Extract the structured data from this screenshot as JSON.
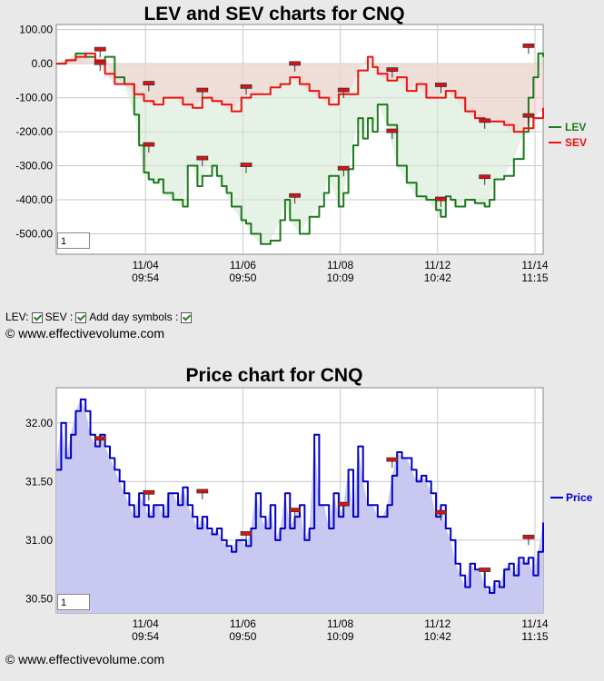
{
  "chart_data": [
    {
      "type": "area",
      "title": "LEV and SEV charts for CNQ",
      "ylim": [
        -560,
        115
      ],
      "yticks": [
        100,
        0,
        -100,
        -200,
        -300,
        -400,
        -500
      ],
      "ytick_labels": [
        "100.00",
        "0.00",
        "-100.00",
        "-200.00",
        "-300.00",
        "-400.00",
        "-500.00"
      ],
      "xticks": [
        {
          "date": "11/04",
          "time": "09:54",
          "at": 20
        },
        {
          "date": "11/06",
          "time": "09:50",
          "at": 40
        },
        {
          "date": "11/08",
          "time": "10:09",
          "at": 60
        },
        {
          "date": "11/12",
          "time": "10:42",
          "at": 80
        },
        {
          "date": "11/14",
          "time": "11:15",
          "at": 100
        }
      ],
      "zoom_value": "1",
      "series": [
        {
          "name": "LEV",
          "color": "#1c7a1c",
          "fill": "#d2e8d2",
          "x": [
            0,
            2,
            4,
            6,
            8,
            10,
            12,
            14,
            16,
            17,
            18,
            19,
            20,
            21,
            22,
            24,
            26,
            27,
            28,
            29,
            30,
            32,
            33,
            34,
            35,
            36,
            38,
            39,
            40,
            42,
            44,
            46,
            47,
            48,
            50,
            52,
            54,
            55,
            56,
            58,
            59,
            60,
            61,
            62,
            63,
            64,
            65,
            66,
            68,
            70,
            72,
            74,
            76,
            78,
            79,
            80,
            81,
            82,
            84,
            86,
            88,
            89,
            90,
            92,
            94,
            96,
            97,
            98,
            99,
            100
          ],
          "values": [
            0,
            10,
            30,
            20,
            0,
            20,
            -40,
            -60,
            -150,
            -240,
            -320,
            -340,
            -350,
            -340,
            -380,
            -400,
            -420,
            -300,
            -300,
            -360,
            -330,
            -300,
            -330,
            -360,
            -380,
            -420,
            -460,
            -470,
            -500,
            -530,
            -520,
            -460,
            -400,
            -460,
            -500,
            -450,
            -420,
            -380,
            -330,
            -420,
            -380,
            -310,
            -240,
            -160,
            -220,
            -160,
            -200,
            -120,
            -180,
            -300,
            -350,
            -390,
            -400,
            -430,
            -450,
            -390,
            -400,
            -420,
            -400,
            -410,
            -420,
            -400,
            -340,
            -330,
            -280,
            -200,
            -100,
            -40,
            30,
            20
          ]
        },
        {
          "name": "SEV",
          "color": "#ee1111",
          "fill": "#f5cccc",
          "x": [
            0,
            2,
            4,
            6,
            8,
            10,
            12,
            14,
            16,
            18,
            20,
            22,
            24,
            26,
            28,
            30,
            32,
            34,
            36,
            38,
            40,
            42,
            44,
            46,
            48,
            50,
            52,
            54,
            56,
            58,
            60,
            62,
            64,
            65,
            66,
            68,
            70,
            72,
            74,
            76,
            78,
            80,
            82,
            84,
            86,
            88,
            90,
            92,
            94,
            96,
            98,
            100
          ],
          "values": [
            0,
            10,
            20,
            30,
            10,
            -30,
            -60,
            -60,
            -90,
            -110,
            -120,
            -100,
            -100,
            -120,
            -130,
            -100,
            -110,
            -120,
            -140,
            -100,
            -90,
            -90,
            -70,
            -60,
            -40,
            -60,
            -80,
            -100,
            -120,
            -90,
            -90,
            -20,
            20,
            -10,
            -30,
            -50,
            -40,
            -80,
            -60,
            -100,
            -100,
            -80,
            -100,
            -140,
            -160,
            -170,
            -170,
            -180,
            -200,
            -190,
            -160,
            -130
          ]
        }
      ],
      "markers_lev": [
        {
          "x": 9,
          "v": 40
        },
        {
          "x": 9,
          "v": 0
        },
        {
          "x": 19,
          "v": -240
        },
        {
          "x": 30,
          "v": -280
        },
        {
          "x": 39,
          "v": -300
        },
        {
          "x": 49,
          "v": -390
        },
        {
          "x": 59,
          "v": -310
        },
        {
          "x": 69,
          "v": -200
        },
        {
          "x": 79,
          "v": -400
        },
        {
          "x": 88,
          "v": -335
        },
        {
          "x": 97,
          "v": -155
        }
      ],
      "markers_sev": [
        {
          "x": 19,
          "v": -60
        },
        {
          "x": 30,
          "v": -80
        },
        {
          "x": 39,
          "v": -70
        },
        {
          "x": 49,
          "v": -2
        },
        {
          "x": 59,
          "v": -80
        },
        {
          "x": 69,
          "v": -20
        },
        {
          "x": 79,
          "v": -65
        },
        {
          "x": 88,
          "v": -170
        },
        {
          "x": 97,
          "v": 50
        }
      ]
    },
    {
      "type": "area",
      "title": "Price chart for CNQ",
      "ylim": [
        30.38,
        32.3
      ],
      "yticks": [
        32.0,
        31.5,
        31.0,
        30.5
      ],
      "ytick_labels": [
        "32.00",
        "31.50",
        "31.00",
        "30.50"
      ],
      "xticks": [
        {
          "date": "11/04",
          "time": "09:54",
          "at": 20
        },
        {
          "date": "11/06",
          "time": "09:50",
          "at": 40
        },
        {
          "date": "11/08",
          "time": "10:09",
          "at": 60
        },
        {
          "date": "11/12",
          "time": "10:42",
          "at": 80
        },
        {
          "date": "11/14",
          "time": "11:15",
          "at": 100
        }
      ],
      "zoom_value": "1",
      "series": [
        {
          "name": "Price",
          "color": "#0000cc",
          "fill": "#c8c8f0",
          "x": [
            0,
            1,
            2,
            3,
            4,
            5,
            6,
            7,
            8,
            9,
            10,
            11,
            12,
            13,
            14,
            15,
            16,
            17,
            18,
            19,
            20,
            21,
            22,
            23,
            24,
            25,
            26,
            27,
            28,
            29,
            30,
            31,
            32,
            33,
            34,
            35,
            36,
            37,
            38,
            39,
            40,
            41,
            42,
            43,
            44,
            45,
            46,
            47,
            48,
            49,
            50,
            51,
            52,
            53,
            54,
            55,
            56,
            57,
            58,
            59,
            60,
            61,
            62,
            63,
            64,
            65,
            66,
            67,
            68,
            69,
            70,
            71,
            72,
            73,
            74,
            75,
            76,
            77,
            78,
            79,
            80,
            81,
            82,
            83,
            84,
            85,
            86,
            87,
            88,
            89,
            90,
            91,
            92,
            93,
            94,
            95,
            96,
            97,
            98,
            99,
            100
          ],
          "values": [
            31.6,
            32.0,
            31.7,
            31.9,
            32.1,
            32.2,
            32.1,
            31.9,
            31.8,
            31.9,
            31.8,
            31.7,
            31.6,
            31.5,
            31.4,
            31.3,
            31.2,
            31.4,
            31.3,
            31.2,
            31.3,
            31.3,
            31.2,
            31.4,
            31.4,
            31.3,
            31.45,
            31.3,
            31.2,
            31.1,
            31.2,
            31.1,
            31.05,
            31.1,
            31.0,
            30.95,
            30.9,
            31.0,
            31.0,
            30.95,
            31.1,
            31.4,
            31.2,
            31.1,
            31.3,
            31.0,
            31.1,
            31.4,
            31.1,
            31.2,
            31.3,
            31.0,
            31.1,
            31.9,
            31.3,
            31.3,
            31.1,
            31.4,
            31.2,
            31.3,
            31.6,
            31.2,
            31.8,
            31.5,
            31.3,
            31.3,
            31.2,
            31.2,
            31.3,
            31.55,
            31.75,
            31.7,
            31.7,
            31.6,
            31.5,
            31.55,
            31.5,
            31.4,
            31.2,
            31.3,
            31.1,
            31.0,
            30.8,
            30.7,
            30.6,
            30.8,
            30.75,
            30.75,
            30.6,
            30.55,
            30.65,
            30.6,
            30.75,
            30.8,
            30.7,
            30.85,
            30.8,
            30.85,
            30.7,
            30.9,
            31.15
          ]
        }
      ],
      "markers": [
        {
          "x": 9,
          "v": 31.86
        },
        {
          "x": 19,
          "v": 31.4
        },
        {
          "x": 30,
          "v": 31.41
        },
        {
          "x": 39,
          "v": 31.05
        },
        {
          "x": 49,
          "v": 31.25
        },
        {
          "x": 59,
          "v": 31.3
        },
        {
          "x": 69,
          "v": 31.68
        },
        {
          "x": 79,
          "v": 31.23
        },
        {
          "x": 88,
          "v": 30.74
        },
        {
          "x": 97,
          "v": 31.02
        }
      ]
    }
  ],
  "controls": {
    "lev_label": "LEV:",
    "sev_label": "SEV :",
    "day_symbols_label": "Add day symbols :"
  },
  "copyright_top": "© www.effectivevolume.com",
  "copyright_bottom": "© www.effectivevolume.com"
}
